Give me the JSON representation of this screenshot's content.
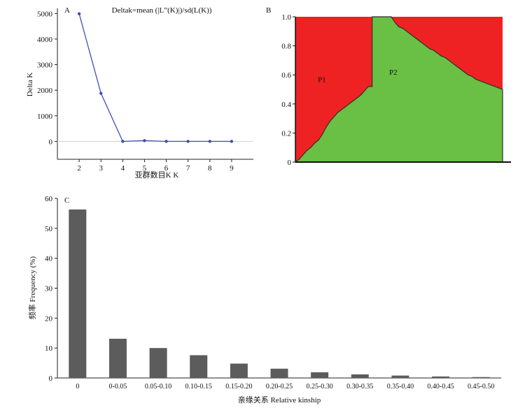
{
  "chart_data": [
    {
      "panel": "A",
      "type": "line",
      "title": "Deltak=mean (|L”(K)|)/sd(L(K))",
      "xlabel": "亚群数目K  K",
      "ylabel": "Delta K",
      "x": [
        2,
        3,
        4,
        5,
        6,
        7,
        8,
        9
      ],
      "values": [
        4990,
        1880,
        0,
        30,
        0,
        0,
        0,
        0
      ],
      "xlim": [
        1,
        10
      ],
      "ylim": [
        -700,
        5200
      ],
      "yticks": [
        0,
        1000,
        2000,
        3000,
        4000,
        5000
      ],
      "color": "#3f4fb4"
    },
    {
      "panel": "B",
      "type": "area",
      "xlabel": "",
      "ylabel": "",
      "ylim": [
        0,
        1.0
      ],
      "yticks": [
        "0",
        "0.2",
        "0.4",
        "0.6",
        "0.8",
        "1.0"
      ],
      "series": [
        {
          "name": "P1",
          "color": "#ee2222"
        },
        {
          "name": "P2",
          "color": "#6abf45"
        }
      ],
      "p2_membership": [
        0.0,
        0.02,
        0.05,
        0.08,
        0.1,
        0.13,
        0.15,
        0.19,
        0.24,
        0.28,
        0.31,
        0.34,
        0.36,
        0.38,
        0.4,
        0.42,
        0.44,
        0.46,
        0.49,
        0.52,
        1.0,
        1.0,
        1.0,
        1.0,
        1.0,
        1.0,
        0.96,
        0.93,
        0.92,
        0.9,
        0.88,
        0.86,
        0.84,
        0.82,
        0.8,
        0.78,
        0.77,
        0.75,
        0.73,
        0.72,
        0.7,
        0.68,
        0.66,
        0.64,
        0.62,
        0.6,
        0.59,
        0.57,
        0.56,
        0.55,
        0.54,
        0.53,
        0.52,
        0.51,
        0.5
      ]
    },
    {
      "panel": "C",
      "type": "bar",
      "xlabel": "亲缘关系 Relative kinship",
      "ylabel": "频率 Frequency (%)",
      "categories": [
        "0",
        "0-0.05",
        "0.05-0.10",
        "0.10-0.15",
        "0.15-0.20",
        "0.20-0.25",
        "0.25-0.30",
        "0.30-0.35",
        "0.35-0.40",
        "0.40-0.45",
        "0.45-0.50"
      ],
      "values": [
        56.3,
        13.1,
        10.0,
        7.6,
        4.8,
        3.1,
        1.9,
        1.2,
        0.8,
        0.5,
        0.3
      ],
      "ylim": [
        0,
        60
      ],
      "yticks": [
        0,
        10,
        20,
        30,
        40,
        50,
        60
      ],
      "color": "#5c5c5c"
    }
  ],
  "panel_labels": {
    "a": "A",
    "b": "B",
    "c": "C"
  }
}
